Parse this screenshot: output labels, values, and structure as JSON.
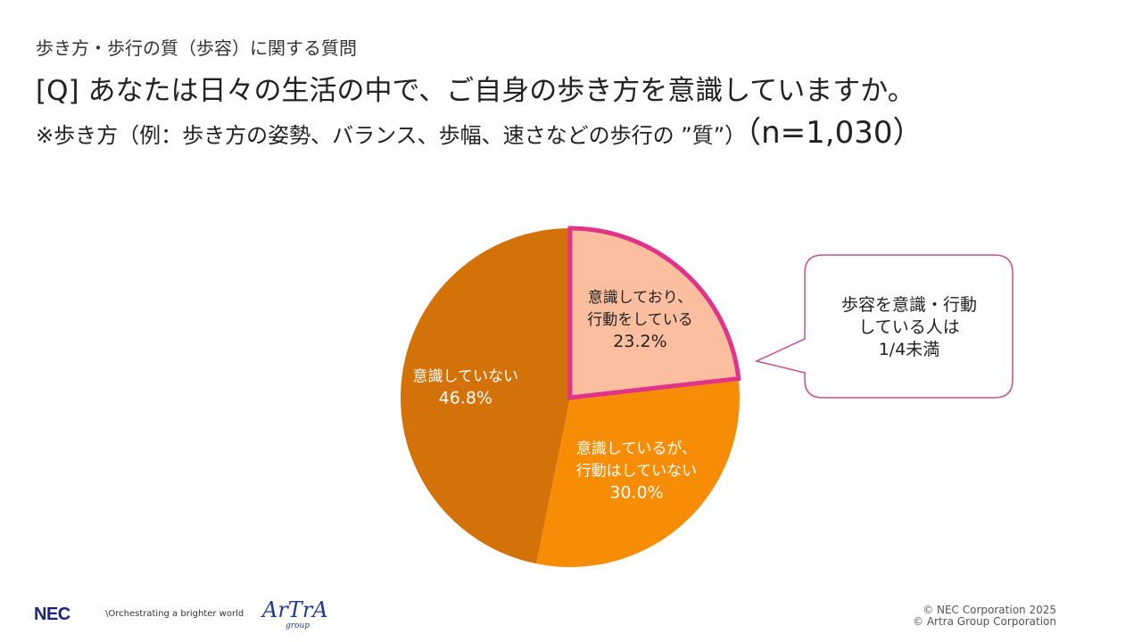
{
  "header": {
    "subtitle": "歩き方・歩行の質（歩容）に関する質問",
    "question": "[Q] あなたは日々の生活の中で、ご自身の歩き方を意識していますか。",
    "note": "※歩き方（例：歩き方の姿勢、バランス、歩幅、速さなどの歩行の ”質”）",
    "sample": "（n=1,030）"
  },
  "chart_data": {
    "type": "pie",
    "start_angle_deg": 0,
    "direction": "clockwise",
    "slices": [
      {
        "label_line1": "意識しており、",
        "label_line2": "行動をしている",
        "value": 23.2,
        "value_label": "23.2%",
        "color": "#fbbf9f",
        "highlight": true,
        "highlight_color": "#e0338a"
      },
      {
        "label_line1": "意識しているが、",
        "label_line2": "行動はしていない",
        "value": 30.0,
        "value_label": "30.0%",
        "color": "#f78c06"
      },
      {
        "label_line1": "意識していない",
        "label_line2": "",
        "value": 46.8,
        "value_label": "46.8%",
        "color": "#d4720a"
      }
    ]
  },
  "callout": {
    "lines": [
      "歩容を意識・行動",
      "している人は",
      "1/4未満"
    ],
    "border_color": "#c2508f"
  },
  "footer": {
    "nec_logo": "NEC",
    "tagline": "\\Orchestrating a brighter world",
    "artra_logo": "ArTrA",
    "artra_sub": "group",
    "copyright_1": "© NEC Corporation 2025",
    "copyright_2": "© Artra Group Corporation"
  }
}
